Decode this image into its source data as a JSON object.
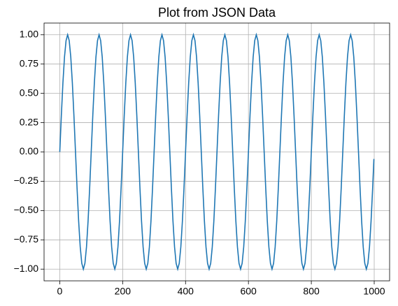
{
  "chart_data": {
    "type": "line",
    "title": "Plot from JSON Data",
    "x": [
      0,
      5,
      10,
      15,
      20,
      25,
      30,
      35,
      40,
      45,
      50,
      55,
      60,
      65,
      70,
      75,
      80,
      85,
      90,
      95,
      100,
      105,
      110,
      115,
      120,
      125,
      130,
      135,
      140,
      145,
      150,
      155,
      160,
      165,
      170,
      175,
      180,
      185,
      190,
      195,
      200,
      205,
      210,
      215,
      220,
      225,
      230,
      235,
      240,
      245,
      250,
      255,
      260,
      265,
      270,
      275,
      280,
      285,
      290,
      295,
      300,
      305,
      310,
      315,
      320,
      325,
      330,
      335,
      340,
      345,
      350,
      355,
      360,
      365,
      370,
      375,
      380,
      385,
      390,
      395,
      400,
      405,
      410,
      415,
      420,
      425,
      430,
      435,
      440,
      445,
      450,
      455,
      460,
      465,
      470,
      475,
      480,
      485,
      490,
      495,
      500,
      505,
      510,
      515,
      520,
      525,
      530,
      535,
      540,
      545,
      550,
      555,
      560,
      565,
      570,
      575,
      580,
      585,
      590,
      595,
      600,
      605,
      610,
      615,
      620,
      625,
      630,
      635,
      640,
      645,
      650,
      655,
      660,
      665,
      670,
      675,
      680,
      685,
      690,
      695,
      700,
      705,
      710,
      715,
      720,
      725,
      730,
      735,
      740,
      745,
      750,
      755,
      760,
      765,
      770,
      775,
      780,
      785,
      790,
      795,
      800,
      805,
      810,
      815,
      820,
      825,
      830,
      835,
      840,
      845,
      850,
      855,
      860,
      865,
      870,
      875,
      880,
      885,
      890,
      895,
      900,
      905,
      910,
      915,
      920,
      925,
      930,
      935,
      940,
      945,
      950,
      955,
      960,
      965,
      970,
      975,
      980,
      985,
      990,
      995,
      999
    ],
    "series": [
      {
        "color": "#1f77b4",
        "values": [
          0,
          0.31,
          0.59,
          0.81,
          0.95,
          1,
          0.95,
          0.81,
          0.59,
          0.31,
          0,
          -0.31,
          -0.59,
          -0.81,
          -0.95,
          -1,
          -0.95,
          -0.81,
          -0.59,
          -0.31,
          0,
          0.31,
          0.59,
          0.81,
          0.95,
          1,
          0.95,
          0.81,
          0.59,
          0.31,
          0,
          -0.31,
          -0.59,
          -0.81,
          -0.95,
          -1,
          -0.95,
          -0.81,
          -0.59,
          -0.31,
          0,
          0.31,
          0.59,
          0.81,
          0.95,
          1,
          0.95,
          0.81,
          0.59,
          0.31,
          0,
          -0.31,
          -0.59,
          -0.81,
          -0.95,
          -1,
          -0.95,
          -0.81,
          -0.59,
          -0.31,
          0,
          0.31,
          0.59,
          0.81,
          0.95,
          1,
          0.95,
          0.81,
          0.59,
          0.31,
          0,
          -0.31,
          -0.59,
          -0.81,
          -0.95,
          -1,
          -0.95,
          -0.81,
          -0.59,
          -0.31,
          0,
          0.31,
          0.59,
          0.81,
          0.95,
          1,
          0.95,
          0.81,
          0.59,
          0.31,
          0,
          -0.31,
          -0.59,
          -0.81,
          -0.95,
          -1,
          -0.95,
          -0.81,
          -0.59,
          -0.31,
          0,
          0.31,
          0.59,
          0.81,
          0.95,
          1,
          0.95,
          0.81,
          0.59,
          0.31,
          0,
          -0.31,
          -0.59,
          -0.81,
          -0.95,
          -1,
          -0.95,
          -0.81,
          -0.59,
          -0.31,
          0,
          0.31,
          0.59,
          0.81,
          0.95,
          1,
          0.95,
          0.81,
          0.59,
          0.31,
          0,
          -0.31,
          -0.59,
          -0.81,
          -0.95,
          -1,
          -0.95,
          -0.81,
          -0.59,
          -0.31,
          0,
          0.31,
          0.59,
          0.81,
          0.95,
          1,
          0.95,
          0.81,
          0.59,
          0.31,
          0,
          -0.31,
          -0.59,
          -0.81,
          -0.95,
          -1,
          -0.95,
          -0.81,
          -0.59,
          -0.31,
          0,
          0.31,
          0.59,
          0.81,
          0.95,
          1,
          0.95,
          0.81,
          0.59,
          0.31,
          0,
          -0.31,
          -0.59,
          -0.81,
          -0.95,
          -1,
          -0.95,
          -0.81,
          -0.59,
          -0.31,
          0,
          0.31,
          0.59,
          0.81,
          0.95,
          1,
          0.95,
          0.81,
          0.59,
          0.31,
          0,
          -0.31,
          -0.59,
          -0.81,
          -0.95,
          -1,
          -0.95,
          -0.81,
          -0.59,
          -0.31,
          -0.06
        ]
      }
    ],
    "xlim": [
      -49.95,
      1048.95
    ],
    "xticks": [
      0,
      200,
      400,
      600,
      800,
      1000
    ],
    "ylim": [
      -1.1,
      1.1
    ],
    "yticks": [
      {
        "value": -1,
        "label": "−1.00"
      },
      {
        "value": -0.75,
        "label": "−0.75"
      },
      {
        "value": -0.5,
        "label": "−0.50"
      },
      {
        "value": -0.25,
        "label": "−0.25"
      },
      {
        "value": 0,
        "label": "0.00"
      },
      {
        "value": 0.25,
        "label": "0.25"
      },
      {
        "value": 0.5,
        "label": "0.50"
      },
      {
        "value": 0.75,
        "label": "0.75"
      },
      {
        "value": 1,
        "label": "1.00"
      }
    ],
    "grid": true
  }
}
